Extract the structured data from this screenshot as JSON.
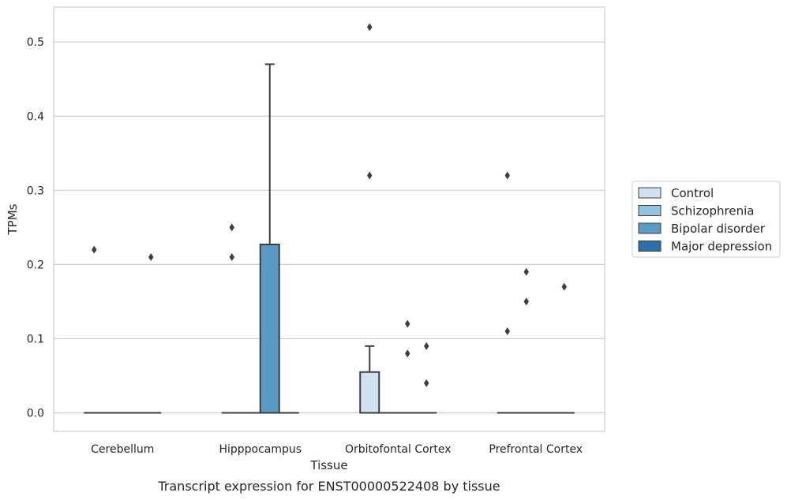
{
  "chart_data": {
    "type": "box",
    "title": "",
    "caption": "Transcript expression for ENST00000522408 by tissue",
    "xlabel": "Tissue",
    "ylabel": "TPMs",
    "ylim": [
      -0.025,
      0.547
    ],
    "yticks": [
      "0.0",
      "0.1",
      "0.2",
      "0.3",
      "0.4",
      "0.5"
    ],
    "ytick_values": [
      0.0,
      0.1,
      0.2,
      0.3,
      0.4,
      0.5
    ],
    "grid": true,
    "legend_position": "right",
    "categories": [
      "Cerebellum",
      "Hipppocampus",
      "Orbitofontal Cortex",
      "Prefrontal Cortex"
    ],
    "series": [
      {
        "name": "Control",
        "color": "#d0e1f2",
        "boxes": [
          {
            "q1": 0,
            "median": 0,
            "q3": 0,
            "whisker_low": 0,
            "whisker_high": 0,
            "outliers": [
              0.22
            ]
          },
          {
            "q1": 0,
            "median": 0,
            "q3": 0,
            "whisker_low": 0,
            "whisker_high": 0,
            "outliers": [
              0.25,
              0.21
            ]
          },
          {
            "q1": 0,
            "median": 0,
            "q3": 0.055,
            "whisker_low": 0,
            "whisker_high": 0.09,
            "outliers": [
              0.52,
              0.32
            ]
          },
          {
            "q1": 0,
            "median": 0,
            "q3": 0,
            "whisker_low": 0,
            "whisker_high": 0,
            "outliers": [
              0.32,
              0.11
            ]
          }
        ]
      },
      {
        "name": "Schizophrenia",
        "color": "#94c4df",
        "boxes": [
          {
            "q1": 0,
            "median": 0,
            "q3": 0,
            "whisker_low": 0,
            "whisker_high": 0,
            "outliers": []
          },
          {
            "q1": 0,
            "median": 0,
            "q3": 0,
            "whisker_low": 0,
            "whisker_high": 0,
            "outliers": []
          },
          {
            "q1": 0,
            "median": 0,
            "q3": 0,
            "whisker_low": 0,
            "whisker_high": 0,
            "outliers": []
          },
          {
            "q1": 0,
            "median": 0,
            "q3": 0,
            "whisker_low": 0,
            "whisker_high": 0,
            "outliers": [
              0.19,
              0.15
            ]
          }
        ]
      },
      {
        "name": "Bipolar disorder",
        "color": "#5a9bc6",
        "boxes": [
          {
            "q1": 0,
            "median": 0,
            "q3": 0,
            "whisker_low": 0,
            "whisker_high": 0,
            "outliers": []
          },
          {
            "q1": 0,
            "median": 0,
            "q3": 0.227,
            "whisker_low": 0,
            "whisker_high": 0.47,
            "outliers": []
          },
          {
            "q1": 0,
            "median": 0,
            "q3": 0,
            "whisker_low": 0,
            "whisker_high": 0,
            "outliers": [
              0.12,
              0.08
            ]
          },
          {
            "q1": 0,
            "median": 0,
            "q3": 0,
            "whisker_low": 0,
            "whisker_high": 0,
            "outliers": []
          }
        ]
      },
      {
        "name": "Major depression",
        "color": "#2c6ea9",
        "boxes": [
          {
            "q1": 0,
            "median": 0,
            "q3": 0,
            "whisker_low": 0,
            "whisker_high": 0,
            "outliers": [
              0.21
            ]
          },
          {
            "q1": 0,
            "median": 0,
            "q3": 0,
            "whisker_low": 0,
            "whisker_high": 0,
            "outliers": []
          },
          {
            "q1": 0,
            "median": 0,
            "q3": 0,
            "whisker_low": 0,
            "whisker_high": 0,
            "outliers": [
              0.09,
              0.04
            ]
          },
          {
            "q1": 0,
            "median": 0,
            "q3": 0,
            "whisker_low": 0,
            "whisker_high": 0,
            "outliers": [
              0.17
            ]
          }
        ]
      }
    ]
  }
}
